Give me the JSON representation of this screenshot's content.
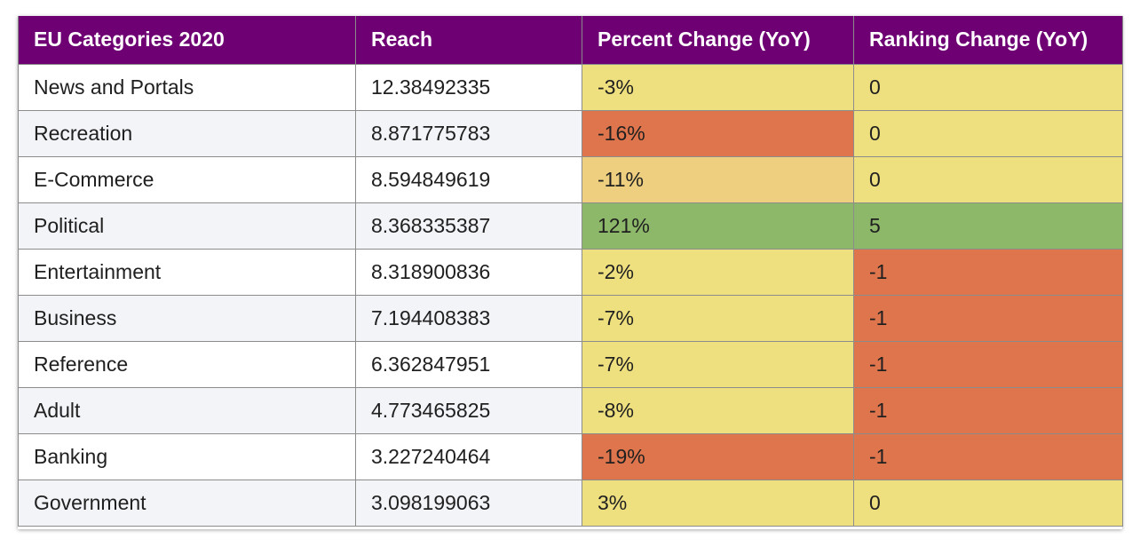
{
  "chart_data": {
    "type": "table",
    "columns": [
      "EU Categories 2020",
      "Reach",
      "Percent Change (YoY)",
      "Ranking Change (YoY)"
    ],
    "rows": [
      {
        "category": "News and Portals",
        "reach": "12.38492335",
        "percent_change": "-3%",
        "ranking_change": "0"
      },
      {
        "category": "Recreation",
        "reach": "8.871775783",
        "percent_change": "-16%",
        "ranking_change": "0"
      },
      {
        "category": "E-Commerce",
        "reach": "8.594849619",
        "percent_change": "-11%",
        "ranking_change": "0"
      },
      {
        "category": "Political",
        "reach": "8.368335387",
        "percent_change": "121%",
        "ranking_change": "5"
      },
      {
        "category": "Entertainment",
        "reach": "8.318900836",
        "percent_change": "-2%",
        "ranking_change": "-1"
      },
      {
        "category": "Business",
        "reach": "7.194408383",
        "percent_change": "-7%",
        "ranking_change": "-1"
      },
      {
        "category": "Reference",
        "reach": "6.362847951",
        "percent_change": "-7%",
        "ranking_change": "-1"
      },
      {
        "category": "Adult",
        "reach": "4.773465825",
        "percent_change": "-8%",
        "ranking_change": "-1"
      },
      {
        "category": "Banking",
        "reach": "3.227240464",
        "percent_change": "-19%",
        "ranking_change": "-1"
      },
      {
        "category": "Government",
        "reach": "3.098199063",
        "percent_change": "3%",
        "ranking_change": "0"
      }
    ]
  },
  "colors": {
    "header_bg": "#6e0074",
    "header_text": "#ffffff",
    "neutral_yellow": "#efe07f",
    "light_orange": "#edcf7f",
    "red_orange": "#df754c",
    "green": "#8db86a"
  },
  "cell_colors": {
    "percent_change": [
      "#efe07f",
      "#df754c",
      "#edcf7f",
      "#8db86a",
      "#efe07f",
      "#efe07f",
      "#efe07f",
      "#efe07f",
      "#df754c",
      "#efe07f"
    ],
    "ranking_change": [
      "#efe07f",
      "#efe07f",
      "#efe07f",
      "#8db86a",
      "#df754c",
      "#df754c",
      "#df754c",
      "#df754c",
      "#df754c",
      "#efe07f"
    ]
  }
}
